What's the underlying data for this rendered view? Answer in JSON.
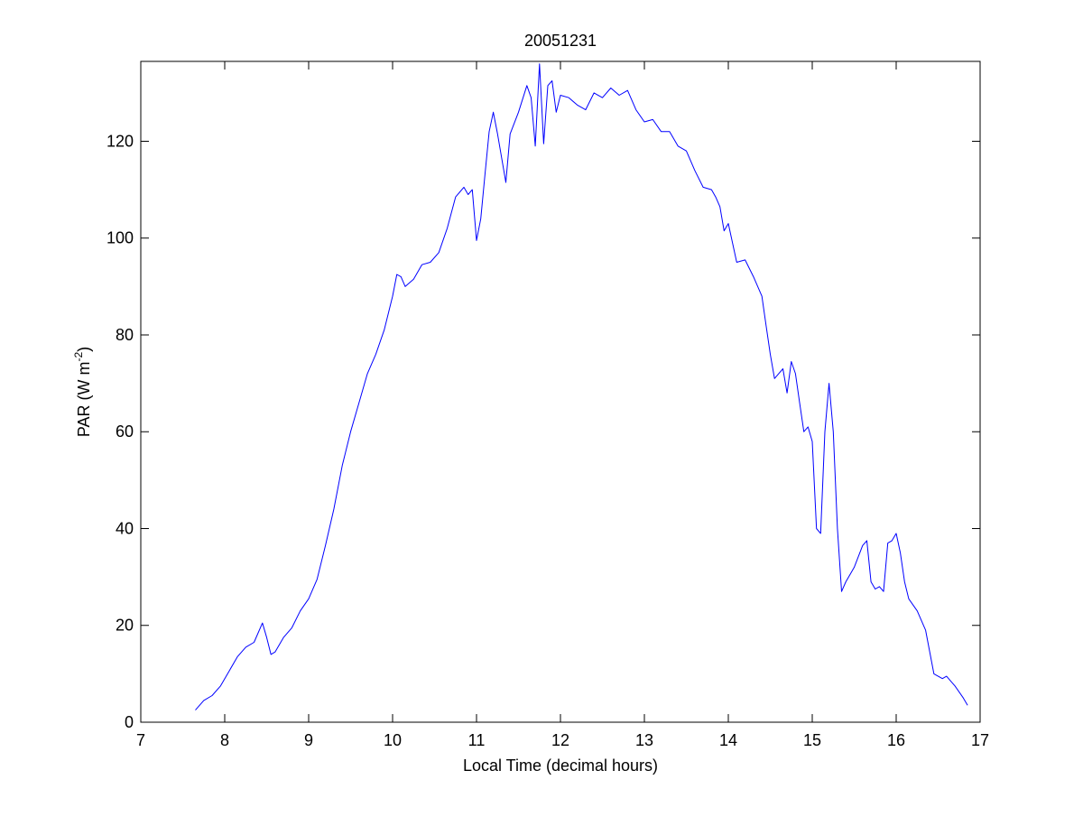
{
  "chart_data": {
    "type": "line",
    "title": "20051231",
    "xlabel": "Local Time (decimal hours)",
    "ylabel": {
      "base": "PAR (W m",
      "sup": "-2",
      "close": ")"
    },
    "xlim": [
      7,
      17
    ],
    "ylim": [
      0,
      136.5
    ],
    "xticks": [
      7,
      8,
      9,
      10,
      11,
      12,
      13,
      14,
      15,
      16,
      17
    ],
    "yticks": [
      0,
      20,
      40,
      60,
      80,
      100,
      120
    ],
    "grid": false,
    "legend": "none",
    "line_color": "#0000ff",
    "series": [
      {
        "x": [
          7.65,
          7.75,
          7.85,
          7.95,
          8.05,
          8.15,
          8.25,
          8.35,
          8.45,
          8.5,
          8.55,
          8.6,
          8.7,
          8.8,
          8.9,
          9.0,
          9.1,
          9.2,
          9.3,
          9.4,
          9.5,
          9.6,
          9.7,
          9.8,
          9.9,
          10.0,
          10.05,
          10.1,
          10.15,
          10.25,
          10.35,
          10.45,
          10.55,
          10.65,
          10.75,
          10.85,
          10.9,
          10.95,
          11.0,
          11.05,
          11.1,
          11.15,
          11.2,
          11.25,
          11.35,
          11.4,
          11.5,
          11.6,
          11.65,
          11.7,
          11.75,
          11.8,
          11.85,
          11.9,
          11.95,
          12.0,
          12.1,
          12.2,
          12.3,
          12.4,
          12.5,
          12.6,
          12.7,
          12.8,
          12.9,
          13.0,
          13.1,
          13.2,
          13.3,
          13.4,
          13.5,
          13.6,
          13.7,
          13.8,
          13.85,
          13.9,
          13.95,
          14.0,
          14.1,
          14.2,
          14.3,
          14.4,
          14.45,
          14.5,
          14.55,
          14.6,
          14.65,
          14.7,
          14.75,
          14.8,
          14.85,
          14.9,
          14.95,
          15.0,
          15.05,
          15.1,
          15.15,
          15.2,
          15.25,
          15.3,
          15.35,
          15.4,
          15.45,
          15.5,
          15.6,
          15.65,
          15.7,
          15.75,
          15.8,
          15.85,
          15.9,
          15.95,
          16.0,
          16.05,
          16.1,
          16.15,
          16.25,
          16.35,
          16.45,
          16.5,
          16.55,
          16.6,
          16.65,
          16.7,
          16.8,
          16.85
        ],
        "y": [
          2.5,
          4.5,
          5.5,
          7.5,
          10.5,
          13.5,
          15.5,
          16.5,
          20.5,
          17.5,
          14.0,
          14.5,
          17.5,
          19.5,
          23.0,
          25.5,
          29.5,
          36.5,
          44.0,
          53.0,
          60.0,
          66.0,
          72.0,
          76.0,
          81.0,
          88.0,
          92.5,
          92.0,
          90.0,
          91.5,
          94.5,
          95.0,
          97.0,
          102.0,
          108.5,
          110.5,
          109.0,
          110.0,
          99.5,
          104.0,
          113.0,
          122.0,
          126.0,
          121.5,
          111.5,
          121.5,
          126.0,
          131.5,
          129.0,
          119.0,
          136.0,
          119.5,
          131.5,
          132.5,
          126.0,
          129.5,
          129.0,
          127.5,
          126.5,
          130.0,
          129.0,
          131.0,
          129.5,
          130.5,
          126.5,
          124.0,
          124.5,
          122.0,
          122.0,
          119.0,
          118.0,
          114.0,
          110.5,
          110.0,
          108.5,
          106.5,
          101.5,
          103.0,
          95.0,
          95.5,
          92.0,
          88.0,
          82.0,
          76.0,
          71.0,
          72.0,
          73.0,
          68.0,
          74.5,
          72.0,
          66.0,
          60.0,
          61.0,
          58.0,
          40.0,
          39.0,
          60.0,
          70.0,
          60.0,
          40.0,
          27.0,
          29.0,
          30.5,
          32.0,
          36.5,
          37.5,
          29.0,
          27.5,
          28.0,
          27.0,
          37.0,
          37.5,
          39.0,
          35.0,
          29.0,
          25.5,
          23.0,
          19.0,
          10.0,
          9.5,
          9.0,
          9.5,
          8.5,
          7.5,
          5.0,
          3.5
        ]
      }
    ]
  }
}
